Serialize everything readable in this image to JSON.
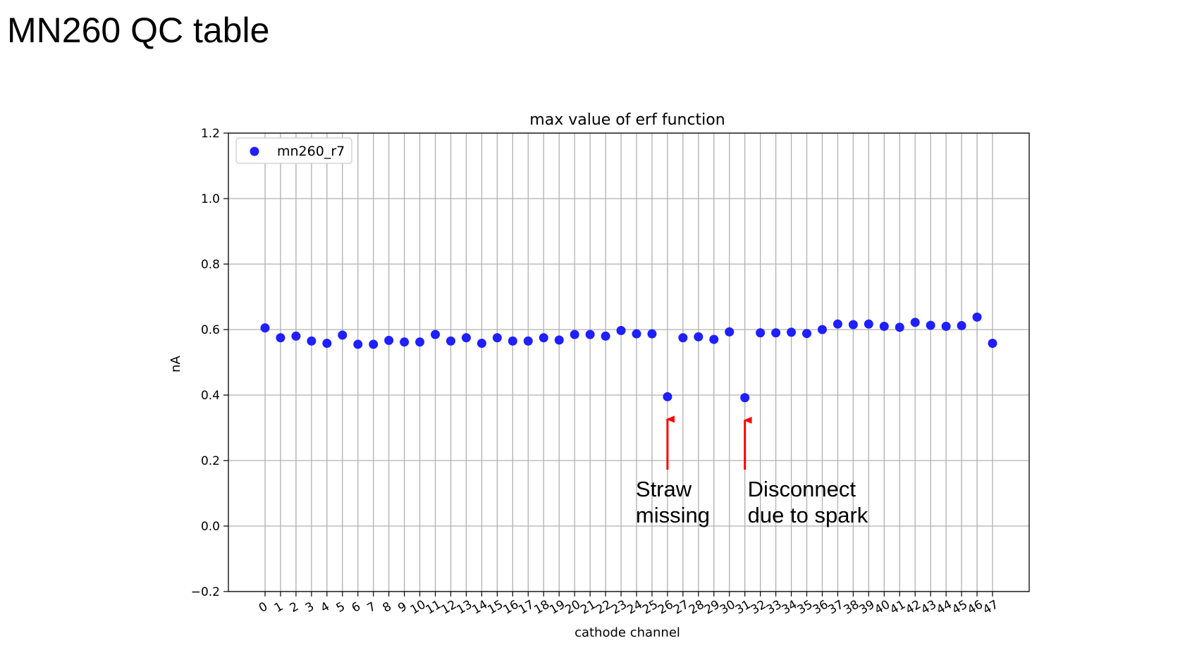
{
  "slide": {
    "title": "MN260 QC table"
  },
  "colors": {
    "series": "#1f1fff",
    "arrow": "#ff0000",
    "grid": "#b0b0b0"
  },
  "chart_data": {
    "type": "scatter",
    "title": "max value of erf function",
    "xlabel": "cathode channel",
    "ylabel": "nA",
    "ylim": [
      -0.2,
      1.2
    ],
    "yticks": [
      -0.2,
      0.0,
      0.2,
      0.4,
      0.6,
      0.8,
      1.0,
      1.2
    ],
    "ytick_labels": [
      "−0.2",
      "0.0",
      "0.2",
      "0.4",
      "0.6",
      "0.8",
      "1.0",
      "1.2"
    ],
    "x": [
      0,
      1,
      2,
      3,
      4,
      5,
      6,
      7,
      8,
      9,
      10,
      11,
      12,
      13,
      14,
      15,
      16,
      17,
      18,
      19,
      20,
      21,
      22,
      23,
      24,
      25,
      26,
      27,
      28,
      29,
      30,
      31,
      32,
      33,
      34,
      35,
      36,
      37,
      38,
      39,
      40,
      41,
      42,
      43,
      44,
      45,
      46,
      47
    ],
    "xtick_labels": [
      "0",
      "1",
      "2",
      "3",
      "4",
      "5",
      "6",
      "7",
      "8",
      "9",
      "10",
      "11",
      "12",
      "13",
      "14",
      "15",
      "16",
      "17",
      "18",
      "19",
      "20",
      "21",
      "22",
      "23",
      "24",
      "25",
      "26",
      "27",
      "28",
      "29",
      "30",
      "31",
      "32",
      "33",
      "34",
      "35",
      "36",
      "37",
      "38",
      "39",
      "40",
      "41",
      "42",
      "43",
      "44",
      "45",
      "46",
      "47"
    ],
    "grid": true,
    "legend": {
      "position": "top-left"
    },
    "series": [
      {
        "name": "mn260_r7",
        "values": [
          0.605,
          0.575,
          0.58,
          0.565,
          0.558,
          0.583,
          0.555,
          0.555,
          0.567,
          0.562,
          0.562,
          0.585,
          0.565,
          0.575,
          0.558,
          0.575,
          0.565,
          0.565,
          0.575,
          0.568,
          0.585,
          0.585,
          0.58,
          0.597,
          0.587,
          0.587,
          0.395,
          0.575,
          0.578,
          0.57,
          0.593,
          0.392,
          0.59,
          0.59,
          0.592,
          0.588,
          0.6,
          0.617,
          0.615,
          0.617,
          0.61,
          0.607,
          0.622,
          0.613,
          0.61,
          0.612,
          0.638,
          0.558
        ]
      }
    ],
    "annotations": [
      {
        "x": 26,
        "lines": [
          "Straw",
          "missing"
        ]
      },
      {
        "x": 31,
        "lines": [
          "Disconnect",
          "due to spark"
        ]
      }
    ]
  }
}
